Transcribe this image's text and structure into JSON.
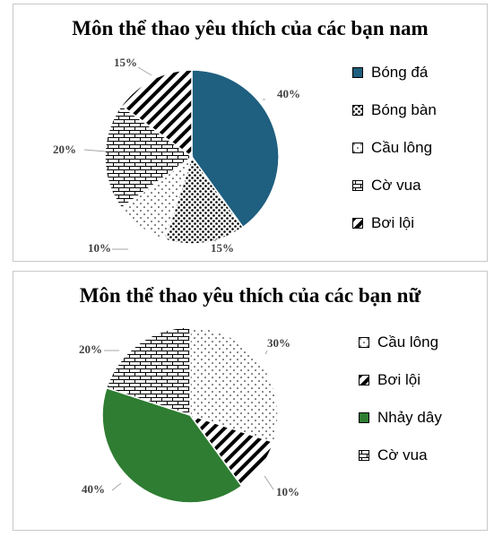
{
  "chart_data": [
    {
      "type": "pie",
      "title": "Môn thể thao yêu thích của các bạn nam",
      "legend_position": "right",
      "labels": [
        "Bóng đá",
        "Bóng bàn",
        "Cầu lông",
        "Cờ vua",
        "Bơi lội"
      ],
      "values": [
        40,
        15,
        10,
        20,
        15
      ],
      "value_labels": [
        "40%",
        "15%",
        "10%",
        "20%",
        "15%"
      ],
      "patterns": [
        "solid",
        "dots-dense",
        "dots-sparse",
        "bricks",
        "diagonal-stripes"
      ],
      "colors": [
        "#1f5f7f",
        "#000000",
        "#000000",
        "#000000",
        "#000000"
      ]
    },
    {
      "type": "pie",
      "title": "Môn thể thao yêu thích của các bạn nữ",
      "legend_position": "right",
      "labels": [
        "Cầu lông",
        "Bơi lội",
        "Nhảy dây",
        "Cờ vua"
      ],
      "values": [
        30,
        10,
        40,
        20
      ],
      "value_labels": [
        "30%",
        "10%",
        "40%",
        "20%"
      ],
      "patterns": [
        "dots-sparse",
        "diagonal-stripes",
        "solid",
        "bricks"
      ],
      "colors": [
        "#000000",
        "#000000",
        "#2e7d32",
        "#000000"
      ]
    }
  ]
}
